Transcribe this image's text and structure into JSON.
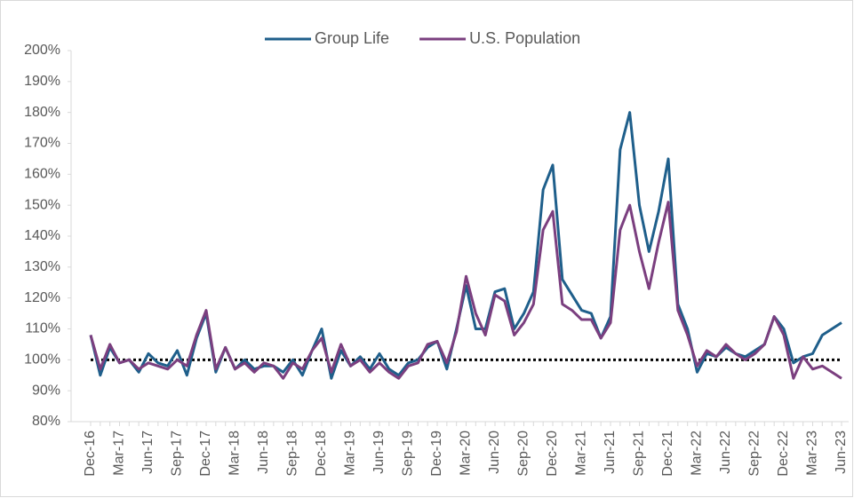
{
  "chart_data": {
    "type": "line",
    "categories": [
      "Dec-16",
      null,
      null,
      "Mar-17",
      null,
      null,
      "Jun-17",
      null,
      null,
      "Sep-17",
      null,
      null,
      "Dec-17",
      null,
      null,
      "Mar-18",
      null,
      null,
      "Jun-18",
      null,
      null,
      "Sep-18",
      null,
      null,
      "Dec-18",
      null,
      null,
      "Mar-19",
      null,
      null,
      "Jun-19",
      null,
      null,
      "Sep-19",
      null,
      null,
      "Dec-19",
      null,
      null,
      "Mar-20",
      null,
      null,
      "Jun-20",
      null,
      null,
      "Sep-20",
      null,
      null,
      "Dec-20",
      null,
      null,
      "Mar-21",
      null,
      null,
      "Jun-21",
      null,
      null,
      "Sep-21",
      null,
      null,
      "Dec-21",
      null,
      null,
      "Mar-22",
      null,
      null,
      "Jun-22",
      null,
      null,
      "Sep-22",
      null,
      null,
      "Dec-22",
      null,
      null,
      "Mar-23",
      null,
      null,
      "Jun-23"
    ],
    "series": [
      {
        "name": "Group Life",
        "color": "#1f5f8b",
        "values": [
          108,
          95,
          104,
          99,
          100,
          96,
          102,
          99,
          98,
          103,
          95,
          107,
          115,
          96,
          104,
          97,
          100,
          97,
          98,
          98,
          96,
          100,
          95,
          103,
          110,
          94,
          103,
          98,
          101,
          97,
          102,
          97,
          95,
          99,
          100,
          104,
          106,
          97,
          110,
          124,
          110,
          110,
          122,
          123,
          110,
          115,
          122,
          155,
          163,
          126,
          121,
          116,
          115,
          107,
          114,
          168,
          180,
          150,
          135,
          148,
          165,
          118,
          110,
          96,
          102,
          101,
          104,
          102,
          101,
          103,
          105,
          114,
          110,
          99,
          101,
          102,
          108,
          110,
          112
        ]
      },
      {
        "name": "U.S. Population",
        "color": "#7b3f7f",
        "values": [
          108,
          97,
          105,
          99,
          100,
          97,
          99,
          98,
          97,
          100,
          98,
          108,
          116,
          97,
          104,
          97,
          99,
          96,
          99,
          98,
          94,
          99,
          97,
          103,
          107,
          96,
          105,
          98,
          100,
          96,
          99,
          96,
          94,
          98,
          99,
          105,
          106,
          99,
          109,
          127,
          115,
          108,
          121,
          119,
          108,
          112,
          118,
          142,
          148,
          118,
          116,
          113,
          113,
          107,
          112,
          142,
          150,
          135,
          123,
          138,
          151,
          116,
          108,
          98,
          103,
          101,
          105,
          102,
          100,
          102,
          105,
          114,
          108,
          94,
          101,
          97,
          98,
          96,
          94
        ]
      }
    ],
    "reference_line": 100,
    "ylim": [
      80,
      200
    ],
    "yticks": [
      {
        "value": 80,
        "label": "80%"
      },
      {
        "value": 90,
        "label": "90%"
      },
      {
        "value": 100,
        "label": "100%"
      },
      {
        "value": 110,
        "label": "110%"
      },
      {
        "value": 120,
        "label": "120%"
      },
      {
        "value": 130,
        "label": "130%"
      },
      {
        "value": 140,
        "label": "140%"
      },
      {
        "value": 150,
        "label": "150%"
      },
      {
        "value": 160,
        "label": "160%"
      },
      {
        "value": 170,
        "label": "170%"
      },
      {
        "value": 180,
        "label": "180%"
      },
      {
        "value": 190,
        "label": "190%"
      },
      {
        "value": 200,
        "label": "200%"
      }
    ],
    "legend": "top"
  }
}
